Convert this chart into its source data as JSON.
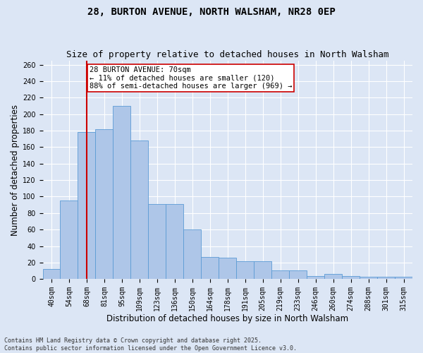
{
  "title_line1": "28, BURTON AVENUE, NORTH WALSHAM, NR28 0EP",
  "title_line2": "Size of property relative to detached houses in North Walsham",
  "xlabel": "Distribution of detached houses by size in North Walsham",
  "ylabel": "Number of detached properties",
  "categories": [
    "40sqm",
    "54sqm",
    "68sqm",
    "81sqm",
    "95sqm",
    "109sqm",
    "123sqm",
    "136sqm",
    "150sqm",
    "164sqm",
    "178sqm",
    "191sqm",
    "205sqm",
    "219sqm",
    "233sqm",
    "246sqm",
    "260sqm",
    "274sqm",
    "288sqm",
    "301sqm",
    "315sqm"
  ],
  "values": [
    12,
    95,
    178,
    182,
    210,
    168,
    91,
    91,
    60,
    27,
    26,
    22,
    22,
    11,
    11,
    4,
    6,
    4,
    3,
    3,
    3
  ],
  "bar_color": "#aec6e8",
  "bar_edge_color": "#5b9bd5",
  "vline_x_idx": 2,
  "vline_color": "#cc0000",
  "annotation_text": "28 BURTON AVENUE: 70sqm\n← 11% of detached houses are smaller (120)\n88% of semi-detached houses are larger (969) →",
  "annotation_box_color": "#ffffff",
  "annotation_box_edge_color": "#cc0000",
  "ylim": [
    0,
    265
  ],
  "yticks": [
    0,
    20,
    40,
    60,
    80,
    100,
    120,
    140,
    160,
    180,
    200,
    220,
    240,
    260
  ],
  "background_color": "#dce6f5",
  "grid_color": "#ffffff",
  "footer_text": "Contains HM Land Registry data © Crown copyright and database right 2025.\nContains public sector information licensed under the Open Government Licence v3.0.",
  "title_fontsize": 10,
  "subtitle_fontsize": 9,
  "tick_fontsize": 7,
  "label_fontsize": 8.5,
  "annotation_fontsize": 7.5,
  "footer_fontsize": 6
}
